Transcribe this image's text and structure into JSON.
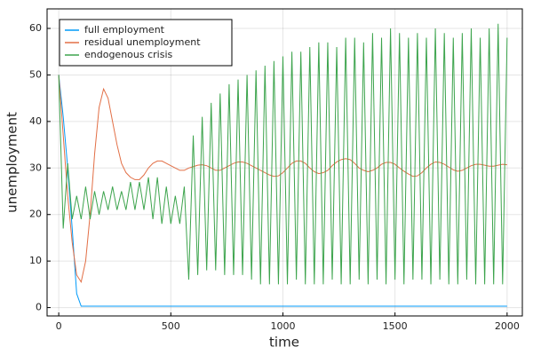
{
  "chart_data": {
    "type": "line",
    "x_label": "time",
    "y_label": "unemployment",
    "x": [
      0,
      20,
      40,
      60,
      80,
      100,
      120,
      140,
      160,
      180,
      200,
      220,
      240,
      260,
      280,
      300,
      320,
      340,
      360,
      380,
      400,
      420,
      440,
      460,
      480,
      500,
      520,
      540,
      560,
      580,
      600,
      620,
      640,
      660,
      680,
      700,
      720,
      740,
      760,
      780,
      800,
      820,
      840,
      860,
      880,
      900,
      920,
      940,
      960,
      980,
      1000,
      1020,
      1040,
      1060,
      1080,
      1100,
      1120,
      1140,
      1160,
      1180,
      1200,
      1220,
      1240,
      1260,
      1280,
      1300,
      1320,
      1340,
      1360,
      1380,
      1400,
      1420,
      1440,
      1460,
      1480,
      1500,
      1520,
      1540,
      1560,
      1580,
      1600,
      1620,
      1640,
      1660,
      1680,
      1700,
      1720,
      1740,
      1760,
      1780,
      1800,
      1820,
      1840,
      1860,
      1880,
      1900,
      1920,
      1940,
      1960,
      1980,
      2000
    ],
    "series": [
      {
        "name": "full employment",
        "color": "#009af9",
        "values": [
          50,
          41,
          30,
          17,
          3,
          0.3,
          0.3,
          0.3,
          0.3,
          0.3,
          0.3,
          0.3,
          0.3,
          0.3,
          0.3,
          0.3,
          0.3,
          0.3,
          0.3,
          0.3,
          0.3,
          0.3,
          0.3,
          0.3,
          0.3,
          0.3,
          0.3,
          0.3,
          0.3,
          0.3,
          0.3,
          0.3,
          0.3,
          0.3,
          0.3,
          0.3,
          0.3,
          0.3,
          0.3,
          0.3,
          0.3,
          0.3,
          0.3,
          0.3,
          0.3,
          0.3,
          0.3,
          0.3,
          0.3,
          0.3,
          0.3,
          0.3,
          0.3,
          0.3,
          0.3,
          0.3,
          0.3,
          0.3,
          0.3,
          0.3,
          0.3,
          0.3,
          0.3,
          0.3,
          0.3,
          0.3,
          0.3,
          0.3,
          0.3,
          0.3,
          0.3,
          0.3,
          0.3,
          0.3,
          0.3,
          0.3,
          0.3,
          0.3,
          0.3,
          0.3,
          0.3,
          0.3,
          0.3,
          0.3,
          0.3,
          0.3,
          0.3,
          0.3,
          0.3,
          0.3,
          0.3,
          0.3,
          0.3,
          0.3,
          0.3,
          0.3,
          0.3,
          0.3,
          0.3,
          0.3,
          0.3
        ]
      },
      {
        "name": "residual unemployment",
        "color": "#e26f46",
        "values": [
          50,
          37,
          24,
          14,
          7,
          5.5,
          10,
          20,
          33,
          43,
          47,
          45,
          40,
          35,
          31,
          29,
          28,
          27.5,
          27.5,
          28.5,
          30,
          31,
          31.5,
          31.5,
          31,
          30.5,
          30,
          29.5,
          29.5,
          30,
          30.3,
          30.6,
          30.7,
          30.5,
          30,
          29.5,
          29.5,
          30,
          30.5,
          31,
          31.3,
          31.3,
          31,
          30.5,
          30,
          29.5,
          29,
          28.5,
          28.2,
          28.3,
          29,
          30,
          31,
          31.5,
          31.5,
          31,
          30,
          29.2,
          28.8,
          29,
          29.5,
          30.5,
          31.3,
          31.8,
          32,
          31.8,
          31,
          30,
          29.5,
          29.2,
          29.5,
          30,
          30.8,
          31.2,
          31.2,
          30.8,
          30,
          29.3,
          28.7,
          28.2,
          28.3,
          29,
          30,
          30.8,
          31.3,
          31.2,
          30.8,
          30.2,
          29.6,
          29.3,
          29.5,
          30,
          30.5,
          30.8,
          30.8,
          30.6,
          30.4,
          30.4,
          30.6,
          30.8,
          30.7
        ]
      },
      {
        "name": "endogenous crisis",
        "color": "#3da44d",
        "values": [
          50,
          17,
          31,
          19,
          24,
          19,
          26,
          19,
          25,
          20,
          25,
          21,
          26,
          21,
          25,
          21,
          27,
          21,
          27,
          21,
          28,
          19,
          28,
          18,
          26,
          18,
          24,
          18,
          26,
          6,
          37,
          7,
          41,
          8,
          44,
          8,
          46,
          7,
          48,
          7,
          49,
          7,
          50,
          6,
          51,
          5,
          52,
          5,
          53,
          5,
          54,
          5,
          55,
          6,
          55,
          5,
          56,
          5,
          57,
          5,
          57,
          6,
          56,
          5,
          58,
          5,
          58,
          6,
          57,
          5,
          59,
          6,
          58,
          5,
          60,
          6,
          59,
          5,
          58,
          6,
          59,
          6,
          58,
          5,
          60,
          6,
          59,
          5,
          58,
          5,
          59,
          6,
          60,
          5,
          58,
          5,
          60,
          5,
          61,
          5,
          58
        ]
      }
    ],
    "xlim": [
      -52,
      2068
    ],
    "ylim": [
      -1.8,
      64.2
    ],
    "xticks": [
      0,
      500,
      1000,
      1500,
      2000
    ],
    "yticks": [
      0,
      10,
      20,
      30,
      40,
      50,
      60
    ],
    "grid": true,
    "legend_position": "top-left"
  }
}
